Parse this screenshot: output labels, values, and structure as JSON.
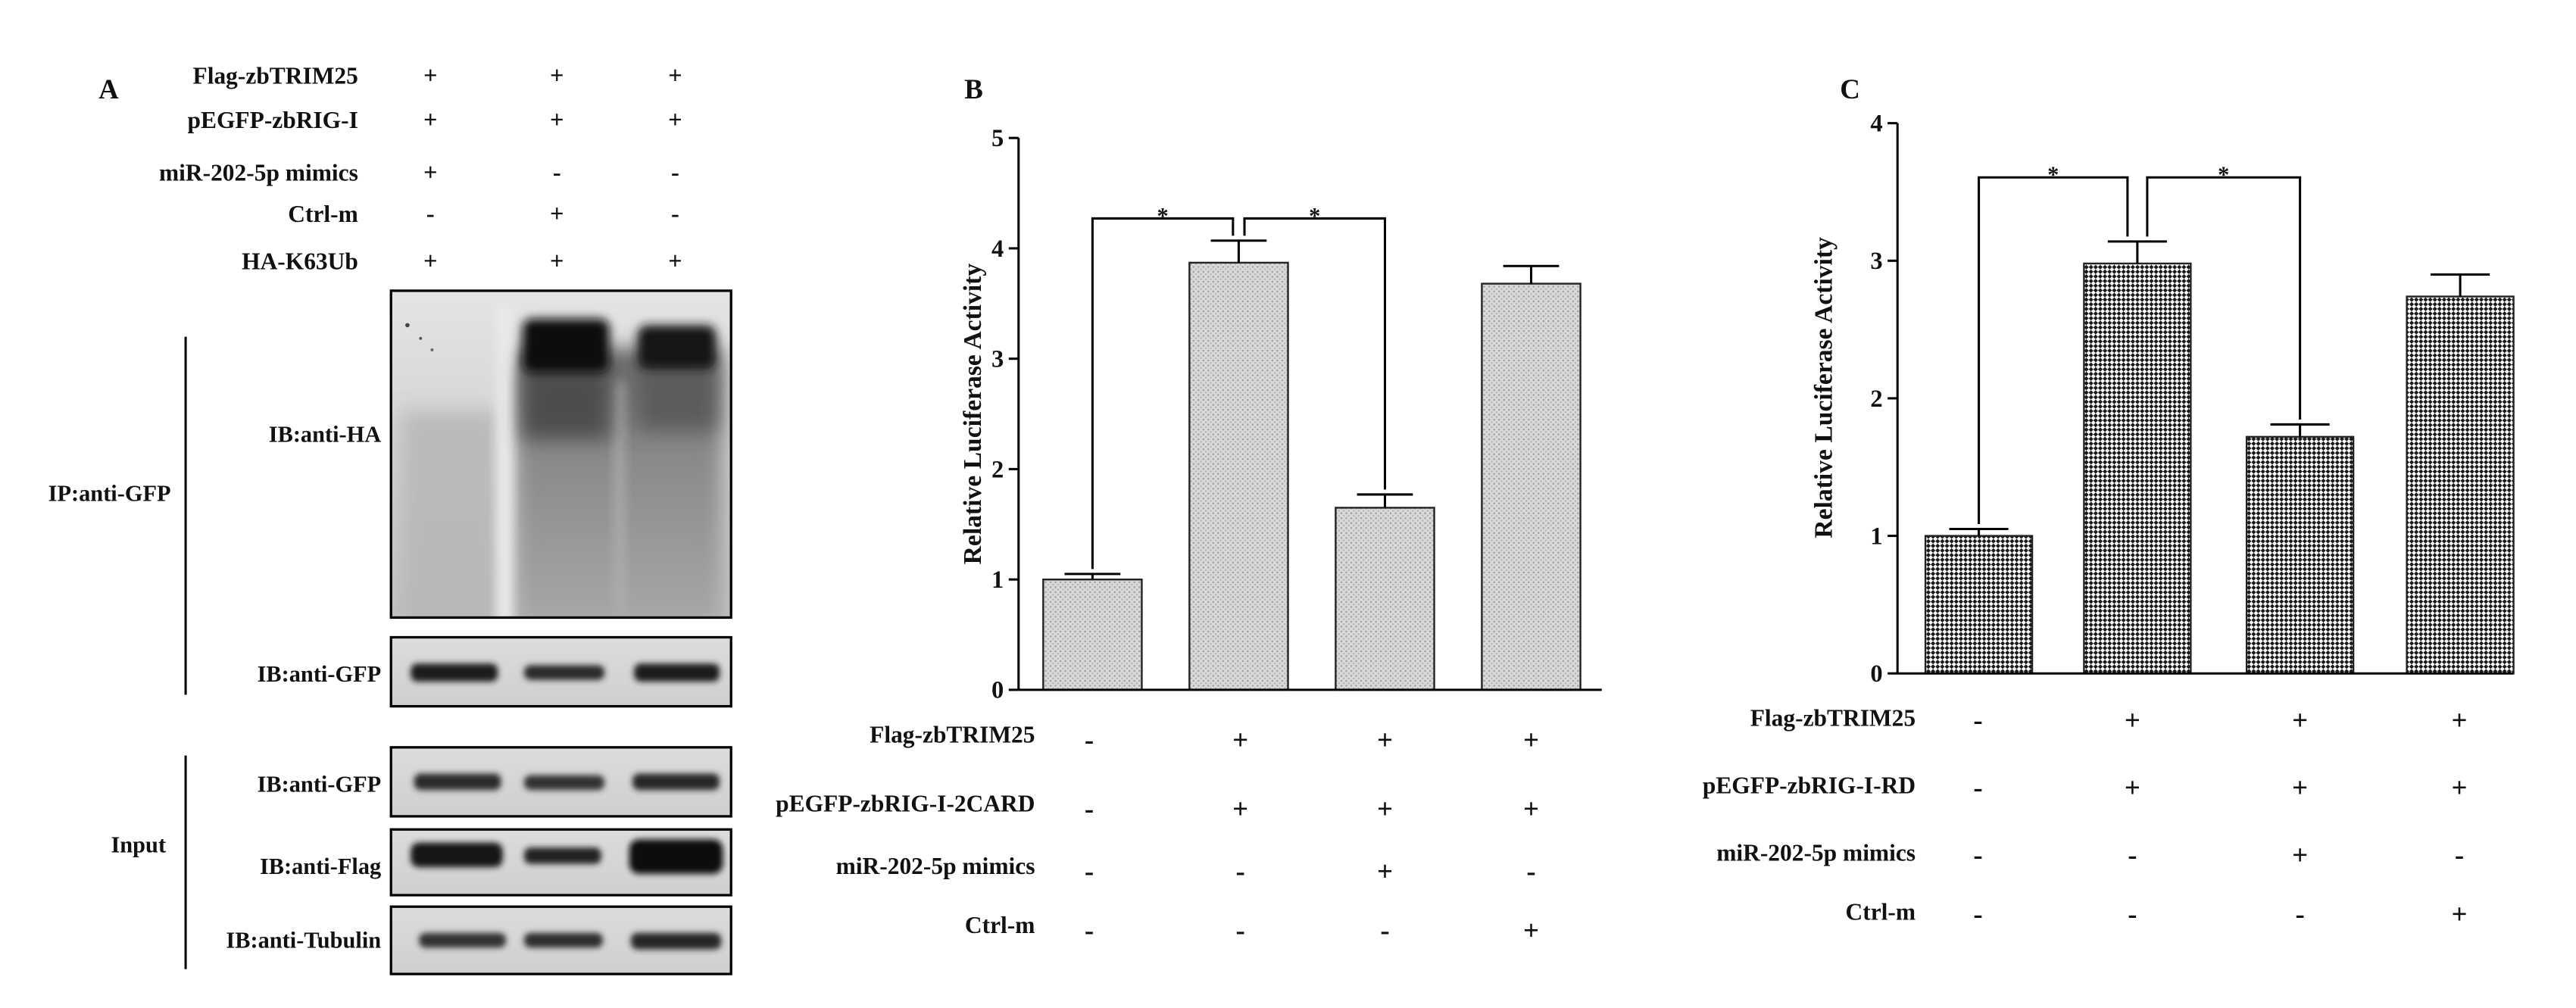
{
  "panel_a": {
    "panel_label": "A",
    "conditions": [
      {
        "name": "Flag-zbTRIM25",
        "signs": [
          "+",
          "+",
          "+"
        ]
      },
      {
        "name": "pEGFP-zbRIG-I",
        "signs": [
          "+",
          "+",
          "+"
        ]
      },
      {
        "name": "miR-202-5p mimics",
        "signs": [
          "+",
          "-",
          "-"
        ]
      },
      {
        "name": "Ctrl-m",
        "signs": [
          "-",
          "+",
          "-"
        ]
      },
      {
        "name": "HA-K63Ub",
        "signs": [
          "+",
          "+",
          "+"
        ]
      }
    ],
    "ip_group": {
      "label": "IP:anti-GFP",
      "blots": [
        "IB:anti-HA",
        "IB:anti-GFP"
      ]
    },
    "input_group": {
      "label": "Input",
      "blots": [
        "IB:anti-GFP",
        "IB:anti-Flag",
        "IB:anti-Tubulin"
      ]
    }
  },
  "chart_data": [
    {
      "panel_label": "B",
      "type": "bar",
      "ylabel": "Relative Luciferase Activity",
      "ylim": [
        0,
        5
      ],
      "yticks": [
        0,
        1,
        2,
        3,
        4,
        5
      ],
      "values": [
        1.0,
        3.87,
        1.65,
        3.68
      ],
      "errors": [
        0.05,
        0.2,
        0.12,
        0.16
      ],
      "bar_color": "#d9d9d9",
      "significance": [
        {
          "bars": [
            0,
            1
          ],
          "label": "*"
        },
        {
          "bars": [
            1,
            2
          ],
          "label": "*"
        }
      ],
      "conditions": [
        {
          "name": "Flag-zbTRIM25",
          "signs": [
            "-",
            "+",
            "+",
            "+"
          ]
        },
        {
          "name": "pEGFP-zbRIG-I-2CARD",
          "signs": [
            "-",
            "+",
            "+",
            "+"
          ]
        },
        {
          "name": "miR-202-5p mimics",
          "signs": [
            "-",
            "-",
            "+",
            "-"
          ]
        },
        {
          "name": "Ctrl-m",
          "signs": [
            "-",
            "-",
            "-",
            "+"
          ]
        }
      ]
    },
    {
      "panel_label": "C",
      "type": "bar",
      "ylabel": "Relative Luciferase Activity",
      "ylim": [
        0,
        4
      ],
      "yticks": [
        0,
        1,
        2,
        3,
        4
      ],
      "values": [
        1.0,
        2.98,
        1.72,
        2.74
      ],
      "errors": [
        0.05,
        0.16,
        0.09,
        0.16
      ],
      "bar_color": "#1a1a1a",
      "significance": [
        {
          "bars": [
            0,
            1
          ],
          "label": "*"
        },
        {
          "bars": [
            1,
            2
          ],
          "label": "*"
        }
      ],
      "conditions": [
        {
          "name": "Flag-zbTRIM25",
          "signs": [
            "-",
            "+",
            "+",
            "+"
          ]
        },
        {
          "name": "pEGFP-zbRIG-I-RD",
          "signs": [
            "-",
            "+",
            "+",
            "+"
          ]
        },
        {
          "name": "miR-202-5p mimics",
          "signs": [
            "-",
            "-",
            "+",
            "-"
          ]
        },
        {
          "name": "Ctrl-m",
          "signs": [
            "-",
            "-",
            "-",
            "+"
          ]
        }
      ]
    }
  ]
}
